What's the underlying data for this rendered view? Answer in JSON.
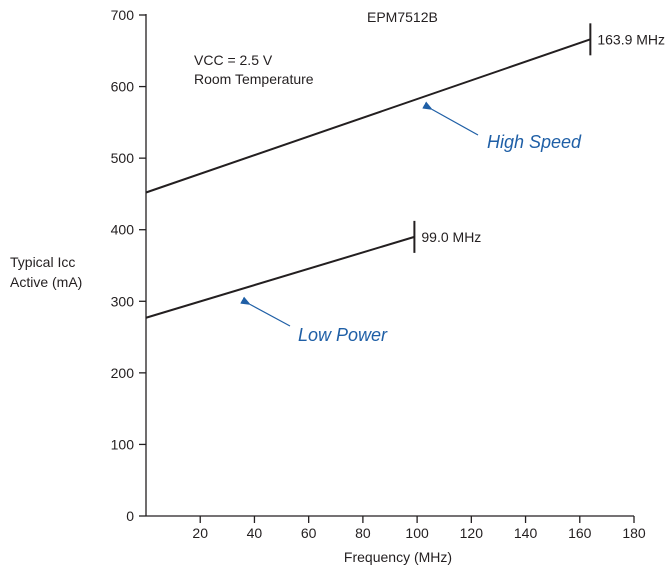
{
  "chart_data": {
    "type": "line",
    "title": "EPM7512B",
    "annotation_lines": [
      "VCC = 2.5 V",
      "Room Temperature"
    ],
    "xlabel": "Frequency (MHz)",
    "ylabel_lines": [
      "Typical Icc",
      "Active (mA)"
    ],
    "xlim": [
      0,
      180
    ],
    "ylim": [
      0,
      700
    ],
    "x_ticks": [
      20,
      40,
      60,
      80,
      100,
      120,
      140,
      160,
      180
    ],
    "y_ticks": [
      0,
      100,
      200,
      300,
      400,
      500,
      600,
      700
    ],
    "grid": false,
    "series": [
      {
        "name": "High Speed",
        "x": [
          0,
          163.9
        ],
        "y": [
          452,
          666
        ],
        "end_label": "163.9 MHz"
      },
      {
        "name": "Low Power",
        "x": [
          0,
          99.0
        ],
        "y": [
          277,
          390
        ],
        "end_label": "99.0 MHz"
      }
    ],
    "colors": {
      "series_label": "#1f5fa6",
      "line": "#231f20"
    }
  }
}
